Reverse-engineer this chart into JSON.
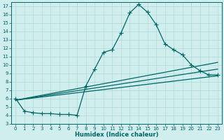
{
  "bg_color": "#d0eeee",
  "grid_color": "#b0d8d8",
  "line_color": "#006666",
  "marker": "+",
  "markersize": 4,
  "linewidth": 0.9,
  "xlabel": "Humidex (Indice chaleur)",
  "xlim": [
    -0.5,
    23.5
  ],
  "ylim": [
    3,
    17.5
  ],
  "xticks": [
    0,
    1,
    2,
    3,
    4,
    5,
    6,
    7,
    8,
    9,
    10,
    11,
    12,
    13,
    14,
    15,
    16,
    17,
    18,
    19,
    20,
    21,
    22,
    23
  ],
  "yticks": [
    3,
    4,
    5,
    6,
    7,
    8,
    9,
    10,
    11,
    12,
    13,
    14,
    15,
    16,
    17
  ],
  "curve1_x": [
    0,
    1,
    2,
    3,
    4,
    5,
    6,
    7,
    8,
    9,
    10,
    11,
    12,
    13,
    14,
    15,
    16,
    17,
    18,
    19,
    20,
    21,
    22,
    23
  ],
  "curve1_y": [
    6.0,
    4.5,
    4.3,
    4.2,
    4.2,
    4.1,
    4.1,
    4.0,
    7.5,
    9.5,
    11.5,
    11.8,
    13.8,
    16.2,
    17.2,
    16.3,
    14.8,
    12.5,
    11.8,
    11.2,
    10.0,
    9.3,
    8.8,
    8.8
  ],
  "line1_x": [
    0,
    23
  ],
  "line1_y": [
    5.8,
    8.7
  ],
  "line2_x": [
    0,
    23
  ],
  "line2_y": [
    5.8,
    9.5
  ],
  "line3_x": [
    0,
    23
  ],
  "line3_y": [
    5.8,
    10.3
  ],
  "tick_fontsize": 5,
  "label_fontsize": 6
}
